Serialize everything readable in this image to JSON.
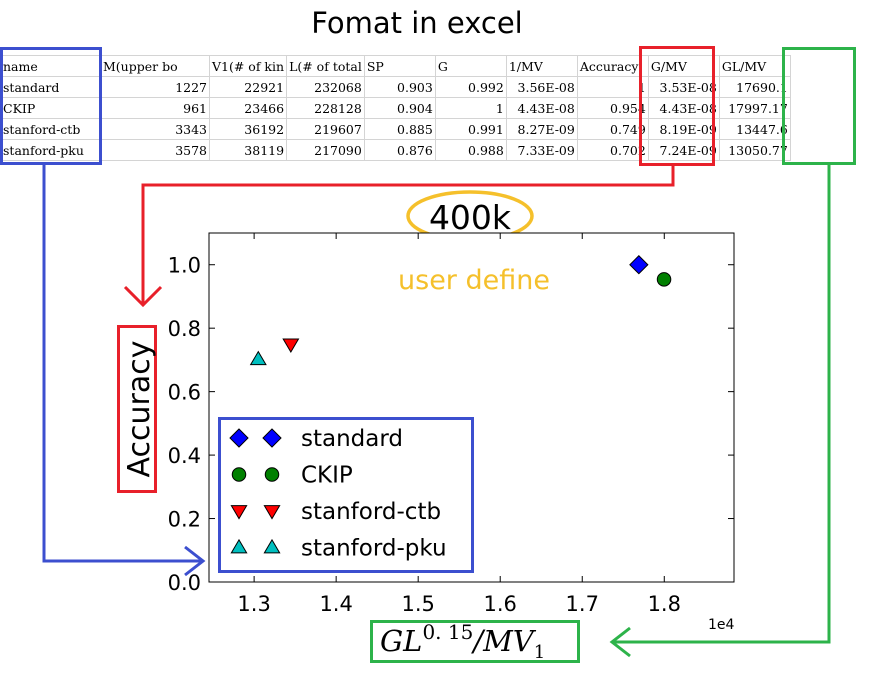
{
  "header": {
    "title": "Fomat in excel"
  },
  "table": {
    "columns": [
      "name",
      "M(upper bo",
      "V1(# of kin",
      "L(# of total",
      "SP",
      "G",
      "1/MV",
      "Accuracy",
      "G/MV",
      "GL/MV"
    ],
    "rows": [
      [
        "standard",
        "1227",
        "22921",
        "232068",
        "0.903",
        "0.992",
        "3.56E-08",
        "1",
        "3.53E-08",
        "17690.1"
      ],
      [
        "CKIP",
        "961",
        "23466",
        "228128",
        "0.904",
        "1",
        "4.43E-08",
        "0.954",
        "4.43E-08",
        "17997.17"
      ],
      [
        "stanford-ctb",
        "3343",
        "36192",
        "219607",
        "0.885",
        "0.991",
        "8.27E-09",
        "0.749",
        "8.19E-09",
        "13447.6"
      ],
      [
        "stanford-pku",
        "3578",
        "38119",
        "217090",
        "0.876",
        "0.988",
        "7.33E-09",
        "0.702",
        "7.24E-09",
        "13050.77"
      ]
    ]
  },
  "annotations": {
    "size_label": "400k",
    "user_define": "user define"
  },
  "colors": {
    "red_box": "#e8202a",
    "blue_box": "#3c4fcf",
    "green_box": "#2db34a",
    "yellow_ellipse": "#f5c02b",
    "user_define_text": "#f5c02b"
  },
  "chart_data": {
    "type": "scatter",
    "title": "",
    "xlabel": "GL^0.15/MV1",
    "xlabel_parts": {
      "base": "GL",
      "sup": "0. 15",
      "mid": "/MV",
      "sub": "1"
    },
    "ylabel": "Accuracy",
    "offset_label": "1e4",
    "xlim": [
      12450,
      18850
    ],
    "ylim": [
      0.0,
      1.1
    ],
    "xticks": [
      13000,
      14000,
      15000,
      16000,
      17000,
      18000
    ],
    "xtick_labels": [
      "1.3",
      "1.4",
      "1.5",
      "1.6",
      "1.7",
      "1.8"
    ],
    "yticks": [
      0.0,
      0.2,
      0.4,
      0.6,
      0.8,
      1.0
    ],
    "ytick_labels": [
      "0.0",
      "0.2",
      "0.4",
      "0.6",
      "0.8",
      "1.0"
    ],
    "legend_position": "lower-left",
    "series": [
      {
        "name": "standard",
        "x": 17690.1,
        "y": 1.0,
        "marker": "diamond",
        "color": "#0000ff"
      },
      {
        "name": "CKIP",
        "x": 17997.17,
        "y": 0.954,
        "marker": "circle",
        "color": "#008000"
      },
      {
        "name": "stanford-ctb",
        "x": 13447.6,
        "y": 0.749,
        "marker": "triangle-down",
        "color": "#ff0000"
      },
      {
        "name": "stanford-pku",
        "x": 13050.77,
        "y": 0.702,
        "marker": "triangle-up",
        "color": "#00bfbf"
      }
    ]
  }
}
